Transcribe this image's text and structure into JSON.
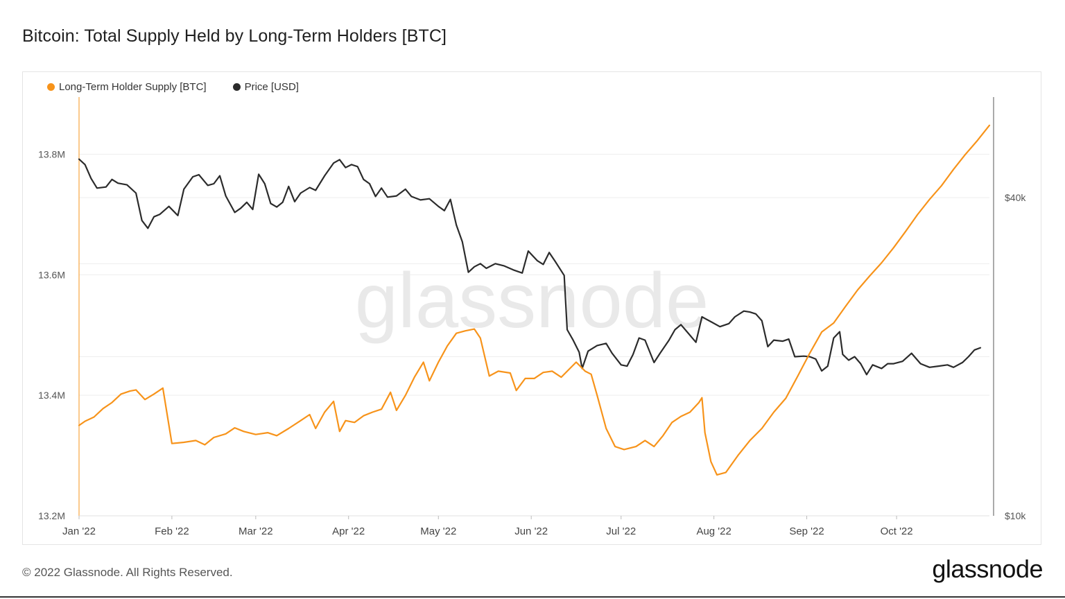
{
  "header": {
    "title": "Bitcoin: Total Supply Held by Long-Term Holders [BTC]"
  },
  "watermark": "glassnode",
  "footer": {
    "copyright": "© 2022 Glassnode. All Rights Reserved.",
    "logo": "glassnode"
  },
  "colors": {
    "supply": "#f7931a",
    "price": "#2b2b2b",
    "grid": "#eeeeee"
  },
  "chart_data": {
    "type": "line",
    "title": "Bitcoin: Total Supply Held by Long-Term Holders [BTC]",
    "legend_position": "top-left",
    "grid": true,
    "x_ticks": [
      "Jan '22",
      "Feb '22",
      "Mar '22",
      "Apr '22",
      "May '22",
      "Jun '22",
      "Jul '22",
      "Aug '22",
      "Sep '22",
      "Oct '22"
    ],
    "y_left": {
      "ticks": [
        "13.2M",
        "13.4M",
        "13.6M",
        "13.8M"
      ],
      "tick_values": [
        13200000,
        13400000,
        13600000,
        13800000
      ],
      "range": [
        13200000,
        13895000
      ]
    },
    "y_right": {
      "ticks": [
        "$10k",
        "$40k"
      ],
      "tick_values": [
        10000,
        40000
      ],
      "scale": "log",
      "range": [
        10000,
        62000
      ]
    },
    "series": [
      {
        "name": "Long-Term Holder Supply [BTC]",
        "axis": "left",
        "points": [
          [
            "2022-01-01",
            13350000
          ],
          [
            "2022-01-03",
            13357000
          ],
          [
            "2022-01-06",
            13364000
          ],
          [
            "2022-01-09",
            13378000
          ],
          [
            "2022-01-12",
            13388000
          ],
          [
            "2022-01-15",
            13402000
          ],
          [
            "2022-01-18",
            13407000
          ],
          [
            "2022-01-20",
            13409000
          ],
          [
            "2022-01-23",
            13393000
          ],
          [
            "2022-01-26",
            13402000
          ],
          [
            "2022-01-29",
            13412000
          ],
          [
            "2022-02-01",
            13320000
          ],
          [
            "2022-02-05",
            13322000
          ],
          [
            "2022-02-09",
            13325000
          ],
          [
            "2022-02-12",
            13318000
          ],
          [
            "2022-02-15",
            13330000
          ],
          [
            "2022-02-19",
            13336000
          ],
          [
            "2022-02-22",
            13346000
          ],
          [
            "2022-02-25",
            13340000
          ],
          [
            "2022-03-01",
            13335000
          ],
          [
            "2022-03-05",
            13338000
          ],
          [
            "2022-03-08",
            13333000
          ],
          [
            "2022-03-12",
            13345000
          ],
          [
            "2022-03-16",
            13358000
          ],
          [
            "2022-03-19",
            13368000
          ],
          [
            "2022-03-21",
            13345000
          ],
          [
            "2022-03-24",
            13372000
          ],
          [
            "2022-03-27",
            13390000
          ],
          [
            "2022-03-29",
            13340000
          ],
          [
            "2022-03-31",
            13358000
          ],
          [
            "2022-04-03",
            13355000
          ],
          [
            "2022-04-06",
            13366000
          ],
          [
            "2022-04-09",
            13372000
          ],
          [
            "2022-04-12",
            13377000
          ],
          [
            "2022-04-15",
            13405000
          ],
          [
            "2022-04-17",
            13375000
          ],
          [
            "2022-04-20",
            13400000
          ],
          [
            "2022-04-23",
            13430000
          ],
          [
            "2022-04-26",
            13455000
          ],
          [
            "2022-04-28",
            13424000
          ],
          [
            "2022-05-01",
            13455000
          ],
          [
            "2022-05-04",
            13482000
          ],
          [
            "2022-05-07",
            13503000
          ],
          [
            "2022-05-10",
            13507000
          ],
          [
            "2022-05-13",
            13510000
          ],
          [
            "2022-05-15",
            13495000
          ],
          [
            "2022-05-18",
            13432000
          ],
          [
            "2022-05-21",
            13440000
          ],
          [
            "2022-05-25",
            13437000
          ],
          [
            "2022-05-27",
            13408000
          ],
          [
            "2022-05-30",
            13428000
          ],
          [
            "2022-06-02",
            13428000
          ],
          [
            "2022-06-05",
            13438000
          ],
          [
            "2022-06-08",
            13440000
          ],
          [
            "2022-06-11",
            13430000
          ],
          [
            "2022-06-14",
            13445000
          ],
          [
            "2022-06-16",
            13455000
          ],
          [
            "2022-06-19",
            13440000
          ],
          [
            "2022-06-21",
            13435000
          ],
          [
            "2022-06-23",
            13400000
          ],
          [
            "2022-06-26",
            13345000
          ],
          [
            "2022-06-29",
            13315000
          ],
          [
            "2022-07-02",
            13310000
          ],
          [
            "2022-07-06",
            13315000
          ],
          [
            "2022-07-09",
            13325000
          ],
          [
            "2022-07-12",
            13315000
          ],
          [
            "2022-07-15",
            13333000
          ],
          [
            "2022-07-18",
            13355000
          ],
          [
            "2022-07-21",
            13365000
          ],
          [
            "2022-07-24",
            13372000
          ],
          [
            "2022-07-27",
            13388000
          ],
          [
            "2022-07-28",
            13396000
          ],
          [
            "2022-07-29",
            13338000
          ],
          [
            "2022-07-31",
            13290000
          ],
          [
            "2022-08-02",
            13268000
          ],
          [
            "2022-08-05",
            13272000
          ],
          [
            "2022-08-09",
            13300000
          ],
          [
            "2022-08-13",
            13325000
          ],
          [
            "2022-08-17",
            13345000
          ],
          [
            "2022-08-21",
            13372000
          ],
          [
            "2022-08-25",
            13395000
          ],
          [
            "2022-08-29",
            13432000
          ],
          [
            "2022-09-02",
            13470000
          ],
          [
            "2022-09-06",
            13505000
          ],
          [
            "2022-09-10",
            13520000
          ],
          [
            "2022-09-14",
            13548000
          ],
          [
            "2022-09-18",
            13575000
          ],
          [
            "2022-09-22",
            13598000
          ],
          [
            "2022-09-26",
            13620000
          ],
          [
            "2022-09-30",
            13645000
          ],
          [
            "2022-10-04",
            13672000
          ],
          [
            "2022-10-08",
            13700000
          ],
          [
            "2022-10-12",
            13725000
          ],
          [
            "2022-10-16",
            13748000
          ],
          [
            "2022-10-20",
            13775000
          ],
          [
            "2022-10-24",
            13800000
          ],
          [
            "2022-10-28",
            13823000
          ],
          [
            "2022-11-01",
            13848000
          ]
        ]
      },
      {
        "name": "Price [USD]",
        "axis": "right",
        "points": [
          [
            "2022-01-01",
            47300
          ],
          [
            "2022-01-03",
            46200
          ],
          [
            "2022-01-05",
            43500
          ],
          [
            "2022-01-07",
            41700
          ],
          [
            "2022-01-10",
            41900
          ],
          [
            "2022-01-12",
            43300
          ],
          [
            "2022-01-14",
            42600
          ],
          [
            "2022-01-17",
            42300
          ],
          [
            "2022-01-20",
            40800
          ],
          [
            "2022-01-22",
            36200
          ],
          [
            "2022-01-24",
            35000
          ],
          [
            "2022-01-26",
            36800
          ],
          [
            "2022-01-28",
            37200
          ],
          [
            "2022-01-31",
            38500
          ],
          [
            "2022-02-03",
            37000
          ],
          [
            "2022-02-05",
            41500
          ],
          [
            "2022-02-08",
            43800
          ],
          [
            "2022-02-10",
            44200
          ],
          [
            "2022-02-13",
            42200
          ],
          [
            "2022-02-15",
            42500
          ],
          [
            "2022-02-17",
            44000
          ],
          [
            "2022-02-19",
            40300
          ],
          [
            "2022-02-22",
            37500
          ],
          [
            "2022-02-24",
            38200
          ],
          [
            "2022-02-26",
            39200
          ],
          [
            "2022-02-28",
            38000
          ],
          [
            "2022-03-02",
            44300
          ],
          [
            "2022-03-04",
            42500
          ],
          [
            "2022-03-06",
            39000
          ],
          [
            "2022-03-08",
            38400
          ],
          [
            "2022-03-10",
            39200
          ],
          [
            "2022-03-12",
            42000
          ],
          [
            "2022-03-14",
            39300
          ],
          [
            "2022-03-16",
            40800
          ],
          [
            "2022-03-19",
            41800
          ],
          [
            "2022-03-21",
            41300
          ],
          [
            "2022-03-24",
            44000
          ],
          [
            "2022-03-27",
            46500
          ],
          [
            "2022-03-29",
            47200
          ],
          [
            "2022-03-31",
            45600
          ],
          [
            "2022-04-02",
            46200
          ],
          [
            "2022-04-04",
            45800
          ],
          [
            "2022-04-06",
            43300
          ],
          [
            "2022-04-08",
            42500
          ],
          [
            "2022-04-10",
            40200
          ],
          [
            "2022-04-12",
            41700
          ],
          [
            "2022-04-14",
            40100
          ],
          [
            "2022-04-17",
            40300
          ],
          [
            "2022-04-20",
            41500
          ],
          [
            "2022-04-22",
            40200
          ],
          [
            "2022-04-25",
            39600
          ],
          [
            "2022-04-28",
            39800
          ],
          [
            "2022-05-01",
            38500
          ],
          [
            "2022-05-03",
            37800
          ],
          [
            "2022-05-05",
            39700
          ],
          [
            "2022-05-07",
            35500
          ],
          [
            "2022-05-09",
            33000
          ],
          [
            "2022-05-11",
            28900
          ],
          [
            "2022-05-13",
            29600
          ],
          [
            "2022-05-15",
            30000
          ],
          [
            "2022-05-17",
            29400
          ],
          [
            "2022-05-20",
            30000
          ],
          [
            "2022-05-23",
            29700
          ],
          [
            "2022-05-26",
            29200
          ],
          [
            "2022-05-29",
            28800
          ],
          [
            "2022-05-31",
            31700
          ],
          [
            "2022-06-03",
            30400
          ],
          [
            "2022-06-05",
            29900
          ],
          [
            "2022-06-07",
            31500
          ],
          [
            "2022-06-09",
            30300
          ],
          [
            "2022-06-12",
            28500
          ],
          [
            "2022-06-13",
            22500
          ],
          [
            "2022-06-15",
            21500
          ],
          [
            "2022-06-17",
            20400
          ],
          [
            "2022-06-18",
            19000
          ],
          [
            "2022-06-20",
            20500
          ],
          [
            "2022-06-23",
            21000
          ],
          [
            "2022-06-26",
            21200
          ],
          [
            "2022-06-28",
            20300
          ],
          [
            "2022-07-01",
            19300
          ],
          [
            "2022-07-03",
            19200
          ],
          [
            "2022-07-05",
            20200
          ],
          [
            "2022-07-07",
            21700
          ],
          [
            "2022-07-09",
            21500
          ],
          [
            "2022-07-12",
            19500
          ],
          [
            "2022-07-14",
            20300
          ],
          [
            "2022-07-17",
            21500
          ],
          [
            "2022-07-19",
            22500
          ],
          [
            "2022-07-21",
            23000
          ],
          [
            "2022-07-23",
            22300
          ],
          [
            "2022-07-26",
            21300
          ],
          [
            "2022-07-28",
            23800
          ],
          [
            "2022-07-31",
            23300
          ],
          [
            "2022-08-03",
            22800
          ],
          [
            "2022-08-06",
            23100
          ],
          [
            "2022-08-08",
            23800
          ],
          [
            "2022-08-11",
            24400
          ],
          [
            "2022-08-13",
            24300
          ],
          [
            "2022-08-15",
            24100
          ],
          [
            "2022-08-17",
            23400
          ],
          [
            "2022-08-19",
            20900
          ],
          [
            "2022-08-21",
            21500
          ],
          [
            "2022-08-24",
            21400
          ],
          [
            "2022-08-26",
            21600
          ],
          [
            "2022-08-28",
            20000
          ],
          [
            "2022-08-31",
            20050
          ],
          [
            "2022-09-02",
            20000
          ],
          [
            "2022-09-04",
            19800
          ],
          [
            "2022-09-06",
            18800
          ],
          [
            "2022-09-08",
            19200
          ],
          [
            "2022-09-10",
            21700
          ],
          [
            "2022-09-12",
            22300
          ],
          [
            "2022-09-13",
            20200
          ],
          [
            "2022-09-15",
            19700
          ],
          [
            "2022-09-17",
            20000
          ],
          [
            "2022-09-19",
            19400
          ],
          [
            "2022-09-21",
            18500
          ],
          [
            "2022-09-23",
            19300
          ],
          [
            "2022-09-26",
            19000
          ],
          [
            "2022-09-28",
            19400
          ],
          [
            "2022-09-30",
            19400
          ],
          [
            "2022-10-03",
            19600
          ],
          [
            "2022-10-06",
            20300
          ],
          [
            "2022-10-09",
            19400
          ],
          [
            "2022-10-12",
            19100
          ],
          [
            "2022-10-15",
            19200
          ],
          [
            "2022-10-18",
            19300
          ],
          [
            "2022-10-20",
            19100
          ],
          [
            "2022-10-23",
            19500
          ],
          [
            "2022-10-25",
            20000
          ],
          [
            "2022-10-27",
            20600
          ],
          [
            "2022-10-29",
            20800
          ]
        ]
      }
    ]
  }
}
